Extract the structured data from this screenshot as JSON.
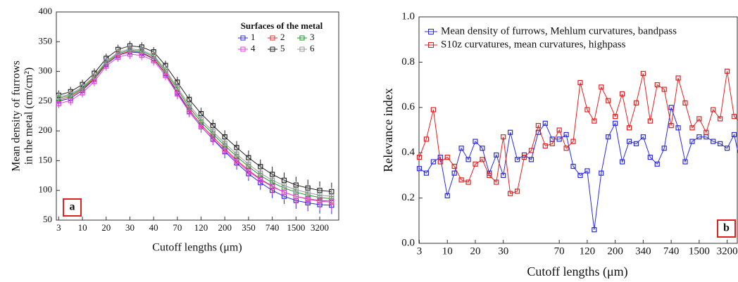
{
  "chart_data": [
    {
      "type": "line",
      "badge": "a",
      "xlabel": "Cutoff lengths (μm)",
      "ylabel": [
        "Mean density of furrows",
        "in the metal (cm/cm²)"
      ],
      "legend_title": "Surfaces of the metal",
      "legend": "top right",
      "categories": [
        "3",
        null,
        "10",
        null,
        "20",
        null,
        "30",
        null,
        "40",
        null,
        "70",
        null,
        "120",
        null,
        "200",
        null,
        "350",
        null,
        "740",
        null,
        "1500",
        null,
        "3200",
        null
      ],
      "ylim": [
        50,
        400
      ],
      "yticks": [
        50,
        100,
        150,
        200,
        250,
        300,
        350,
        400
      ],
      "series": [
        {
          "name": "1",
          "color": "#2a2ae0",
          "values": [
            250,
            255,
            268,
            287,
            312,
            327,
            333,
            331,
            321,
            296,
            264,
            233,
            207,
            186,
            165,
            146,
            128,
            113,
            100,
            90,
            83,
            79,
            76,
            75
          ],
          "errors": [
            8,
            8,
            8,
            8,
            8,
            8,
            8,
            8,
            8,
            8,
            9,
            9,
            10,
            10,
            11,
            11,
            12,
            12,
            13,
            13,
            14,
            14,
            15,
            15
          ]
        },
        {
          "name": "2",
          "color": "#e03030",
          "values": [
            252,
            258,
            270,
            288,
            313,
            328,
            334,
            332,
            322,
            297,
            266,
            236,
            210,
            190,
            170,
            151,
            134,
            119,
            107,
            97,
            90,
            86,
            83,
            82
          ],
          "errors": [
            8,
            8,
            8,
            8,
            8,
            8,
            8,
            8,
            8,
            8,
            9,
            9,
            10,
            10,
            11,
            11,
            12,
            12,
            13,
            13,
            14,
            14,
            15,
            15
          ]
        },
        {
          "name": "3",
          "color": "#1a9a2a",
          "values": [
            255,
            260,
            272,
            290,
            315,
            330,
            336,
            334,
            325,
            300,
            270,
            240,
            215,
            195,
            175,
            157,
            140,
            125,
            113,
            104,
            97,
            92,
            88,
            86
          ],
          "errors": [
            8,
            8,
            8,
            8,
            8,
            8,
            8,
            8,
            8,
            8,
            9,
            9,
            10,
            10,
            11,
            11,
            12,
            12,
            13,
            13,
            14,
            14,
            15,
            15
          ]
        },
        {
          "name": "4",
          "color": "#e040e0",
          "values": [
            246,
            251,
            264,
            283,
            309,
            324,
            329,
            327,
            318,
            293,
            262,
            232,
            207,
            187,
            167,
            149,
            132,
            118,
            106,
            97,
            90,
            85,
            82,
            80
          ],
          "errors": [
            8,
            8,
            8,
            8,
            8,
            8,
            8,
            8,
            8,
            8,
            9,
            9,
            10,
            10,
            11,
            11,
            12,
            12,
            13,
            13,
            14,
            14,
            15,
            15
          ]
        },
        {
          "name": "5",
          "color": "#222222",
          "values": [
            260,
            266,
            278,
            297,
            322,
            337,
            343,
            341,
            333,
            310,
            282,
            253,
            229,
            209,
            190,
            172,
            155,
            140,
            127,
            117,
            109,
            104,
            100,
            98
          ],
          "errors": [
            8,
            8,
            8,
            8,
            8,
            8,
            8,
            8,
            8,
            8,
            9,
            9,
            10,
            10,
            11,
            11,
            12,
            12,
            13,
            13,
            14,
            14,
            15,
            15
          ]
        },
        {
          "name": "6",
          "color": "#999999",
          "values": [
            257,
            262,
            274,
            292,
            317,
            332,
            338,
            336,
            327,
            303,
            273,
            244,
            219,
            199,
            179,
            161,
            144,
            129,
            117,
            108,
            101,
            96,
            92,
            90
          ],
          "errors": [
            8,
            8,
            8,
            8,
            8,
            8,
            8,
            8,
            8,
            8,
            9,
            9,
            10,
            10,
            11,
            11,
            12,
            12,
            13,
            13,
            14,
            14,
            15,
            15
          ]
        }
      ]
    },
    {
      "type": "line",
      "badge": "b",
      "xlabel": "Cutoff lengths (μm)",
      "ylabel": [
        "Relevance index"
      ],
      "legend": "top left",
      "categories": [
        "3",
        null,
        null,
        null,
        "10",
        null,
        null,
        null,
        "20",
        null,
        null,
        null,
        "30",
        null,
        null,
        null,
        null,
        null,
        null,
        null,
        "70",
        null,
        null,
        null,
        "120",
        null,
        null,
        null,
        "200",
        null,
        null,
        null,
        "340",
        null,
        null,
        null,
        "740",
        null,
        null,
        null,
        "1500",
        null,
        null,
        null,
        "3200",
        null,
        null
      ],
      "ylim": [
        0,
        1
      ],
      "yticks": [
        {
          "value": 0,
          "label": "0.0"
        },
        0.2,
        0.4,
        0.6,
        0.8,
        {
          "value": 1,
          "label": "1.0"
        }
      ],
      "series": [
        {
          "name": "Mean density of furrows, Mehlum curvatures, bandpass",
          "color": "#2a2ae0",
          "values": [
            0.33,
            0.31,
            0.36,
            0.38,
            0.21,
            0.31,
            0.42,
            0.37,
            0.45,
            0.42,
            0.31,
            0.39,
            0.3,
            0.49,
            0.37,
            0.39,
            0.37,
            0.49,
            0.53,
            0.46,
            0.46,
            0.48,
            0.34,
            0.3,
            0.32,
            0.06,
            0.31,
            0.47,
            0.53,
            0.36,
            0.45,
            0.44,
            0.47,
            0.38,
            0.35,
            0.42,
            0.6,
            0.51,
            0.36,
            0.45,
            0.47,
            0.47,
            0.45,
            0.44,
            0.42,
            0.48,
            0.34
          ]
        },
        {
          "name": "S10z curvatures, mean curvatures, highpass",
          "color": "#e02020",
          "values": [
            0.38,
            0.46,
            0.59,
            0.36,
            0.38,
            0.34,
            0.28,
            0.27,
            0.35,
            0.37,
            0.3,
            0.27,
            0.47,
            0.22,
            0.23,
            0.38,
            0.41,
            0.52,
            0.43,
            0.44,
            0.5,
            0.42,
            0.45,
            0.71,
            0.59,
            0.54,
            0.69,
            0.63,
            0.56,
            0.66,
            0.51,
            0.62,
            0.75,
            0.54,
            0.7,
            0.68,
            0.52,
            0.73,
            0.62,
            0.51,
            0.55,
            0.49,
            0.59,
            0.55,
            0.76,
            0.56,
            0.53
          ]
        }
      ]
    }
  ]
}
